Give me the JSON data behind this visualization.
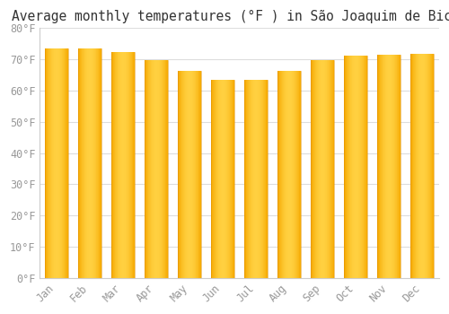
{
  "title": "Average monthly temperatures (°F ) in São Joaquim de Bicas",
  "months": [
    "Jan",
    "Feb",
    "Mar",
    "Apr",
    "May",
    "Jun",
    "Jul",
    "Aug",
    "Sep",
    "Oct",
    "Nov",
    "Dec"
  ],
  "values": [
    73.4,
    73.4,
    72.5,
    69.8,
    66.2,
    63.5,
    63.5,
    66.2,
    69.8,
    71.1,
    71.6,
    71.8
  ],
  "bar_color_edge": "#F5A800",
  "bar_color_center": "#FFD040",
  "background_color": "#FFFFFF",
  "plot_bg_color": "#FFFFFF",
  "grid_color": "#DDDDDD",
  "ylim": [
    0,
    80
  ],
  "yticks": [
    0,
    10,
    20,
    30,
    40,
    50,
    60,
    70,
    80
  ],
  "ytick_labels": [
    "0°F",
    "10°F",
    "20°F",
    "30°F",
    "40°F",
    "50°F",
    "60°F",
    "70°F",
    "80°F"
  ],
  "tick_color": "#999999",
  "title_fontsize": 10.5,
  "tick_fontsize": 8.5,
  "bar_width": 0.7
}
